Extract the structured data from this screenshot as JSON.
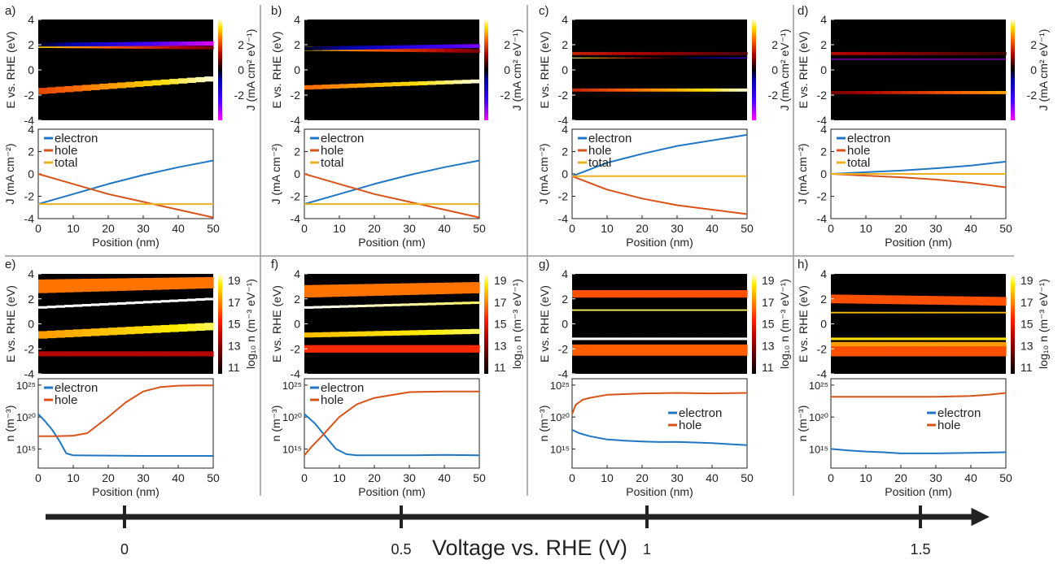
{
  "colors": {
    "electron": "#1f77c4",
    "hole": "#d95319",
    "total": "#edb120",
    "divider": "#999999",
    "axis": "#222222"
  },
  "panels": [
    {
      "label": "a)",
      "row": "J",
      "energy_density_ylabel": "E vs. RHE (eV)",
      "colorbar_label": "J (mA cm² eV⁻¹)",
      "colorbar_ticks": [
        "2",
        "0",
        "-2"
      ]
    },
    {
      "label": "b)",
      "row": "J",
      "energy_density_ylabel": "E vs. RHE (eV)",
      "colorbar_label": "J (mA cm² eV⁻¹)",
      "colorbar_ticks": [
        "2",
        "0",
        "-2"
      ]
    },
    {
      "label": "c)",
      "row": "J",
      "energy_density_ylabel": "E vs. RHE (eV)",
      "colorbar_label": "J (mA cm² eV⁻¹)",
      "colorbar_ticks": [
        "2",
        "0",
        "-2"
      ]
    },
    {
      "label": "d)",
      "row": "J",
      "energy_density_ylabel": "E vs. RHE (eV)",
      "colorbar_label": "J (mA cm² eV⁻¹)",
      "colorbar_ticks": [
        "2",
        "0",
        "-2"
      ]
    },
    {
      "label": "e)",
      "row": "n",
      "energy_density_ylabel": "E vs. RHE (eV)",
      "colorbar_label": "log₁₀ n (m⁻³ eV⁻¹)",
      "colorbar_ticks": [
        "19",
        "17",
        "15",
        "13",
        "11"
      ]
    },
    {
      "label": "f)",
      "row": "n",
      "energy_density_ylabel": "E vs. RHE (eV)",
      "colorbar_label": "log₁₀ n (m⁻³ eV⁻¹)",
      "colorbar_ticks": [
        "19",
        "17",
        "15",
        "13",
        "11"
      ]
    },
    {
      "label": "g)",
      "row": "n",
      "energy_density_ylabel": "E vs. RHE (eV)",
      "colorbar_label": "log₁₀ n (m⁻³ eV⁻¹)",
      "colorbar_ticks": [
        "19",
        "17",
        "15",
        "13",
        "11"
      ]
    },
    {
      "label": "h)",
      "row": "n",
      "energy_density_ylabel": "E vs. RHE (eV)",
      "colorbar_label": "log₁₀ n (m⁻³ eV⁻¹)",
      "colorbar_ticks": [
        "19",
        "17",
        "15",
        "13",
        "11"
      ]
    }
  ],
  "voltage_axis": {
    "label": "Voltage vs. RHE (V)",
    "ticks": [
      "0",
      "0.5",
      "1",
      "1.5"
    ]
  },
  "chart_data": [
    {
      "type": "line",
      "panel": "a)",
      "xlabel": "Position (nm)",
      "ylabel": "J (mA cm⁻²)",
      "xlim": [
        0,
        50
      ],
      "ylim": [
        -4,
        4
      ],
      "xticks": [
        "0",
        "10",
        "20",
        "30",
        "40",
        "50"
      ],
      "yticks": [
        "4",
        "2",
        "0",
        "-2",
        "-4"
      ],
      "legend": "top-left",
      "series": [
        {
          "name": "electron",
          "x": [
            0,
            10,
            20,
            30,
            40,
            50
          ],
          "y": [
            -2.7,
            -1.8,
            -0.9,
            -0.1,
            0.6,
            1.2
          ]
        },
        {
          "name": "hole",
          "x": [
            0,
            10,
            20,
            30,
            40,
            50
          ],
          "y": [
            0,
            -0.9,
            -1.8,
            -2.5,
            -3.2,
            -3.9
          ]
        },
        {
          "name": "total",
          "x": [
            0,
            50
          ],
          "y": [
            -2.7,
            -2.7
          ]
        }
      ]
    },
    {
      "type": "line",
      "panel": "b)",
      "xlabel": "Position (nm)",
      "ylabel": "J (mA cm⁻²)",
      "xlim": [
        0,
        50
      ],
      "ylim": [
        -4,
        4
      ],
      "xticks": [
        "0",
        "10",
        "20",
        "30",
        "40",
        "50"
      ],
      "yticks": [
        "4",
        "2",
        "0",
        "-2",
        "-4"
      ],
      "legend": "top-left",
      "series": [
        {
          "name": "electron",
          "x": [
            0,
            10,
            20,
            30,
            40,
            50
          ],
          "y": [
            -2.7,
            -1.8,
            -0.9,
            -0.1,
            0.6,
            1.2
          ]
        },
        {
          "name": "hole",
          "x": [
            0,
            10,
            20,
            30,
            40,
            50
          ],
          "y": [
            0,
            -0.9,
            -1.8,
            -2.5,
            -3.2,
            -3.9
          ]
        },
        {
          "name": "total",
          "x": [
            0,
            50
          ],
          "y": [
            -2.7,
            -2.7
          ]
        }
      ]
    },
    {
      "type": "line",
      "panel": "c)",
      "xlabel": "Position (nm)",
      "ylabel": "J (mA cm⁻²)",
      "xlim": [
        0,
        50
      ],
      "ylim": [
        -4,
        4
      ],
      "xticks": [
        "0",
        "10",
        "20",
        "30",
        "40",
        "50"
      ],
      "yticks": [
        "4",
        "2",
        "0",
        "-2",
        "-4"
      ],
      "legend": "top-left",
      "series": [
        {
          "name": "electron",
          "x": [
            0,
            10,
            20,
            30,
            40,
            50
          ],
          "y": [
            -0.2,
            1.0,
            1.8,
            2.5,
            3.0,
            3.5
          ]
        },
        {
          "name": "hole",
          "x": [
            0,
            10,
            20,
            30,
            40,
            50
          ],
          "y": [
            -0.2,
            -1.4,
            -2.2,
            -2.8,
            -3.2,
            -3.6
          ]
        },
        {
          "name": "total",
          "x": [
            0,
            50
          ],
          "y": [
            -0.2,
            -0.2
          ]
        }
      ]
    },
    {
      "type": "line",
      "panel": "d)",
      "xlabel": "Position (nm)",
      "ylabel": "J (mA cm⁻²)",
      "xlim": [
        0,
        50
      ],
      "ylim": [
        -4,
        4
      ],
      "xticks": [
        "0",
        "10",
        "20",
        "30",
        "40",
        "50"
      ],
      "yticks": [
        "4",
        "2",
        "0",
        "-2",
        "-4"
      ],
      "legend": "top-left",
      "series": [
        {
          "name": "electron",
          "x": [
            0,
            10,
            20,
            30,
            40,
            50
          ],
          "y": [
            0,
            0.15,
            0.3,
            0.5,
            0.75,
            1.1
          ]
        },
        {
          "name": "hole",
          "x": [
            0,
            10,
            20,
            30,
            40,
            50
          ],
          "y": [
            0,
            -0.15,
            -0.3,
            -0.5,
            -0.8,
            -1.2
          ]
        },
        {
          "name": "total",
          "x": [
            0,
            50
          ],
          "y": [
            0,
            0
          ]
        }
      ]
    },
    {
      "type": "line",
      "panel": "e)",
      "xlabel": "Position (nm)",
      "ylabel": "n (m⁻³)",
      "yscale": "log",
      "xlim": [
        0,
        50
      ],
      "ylim": [
        1000000000000.0,
        1e+26
      ],
      "xticks": [
        "0",
        "10",
        "20",
        "30",
        "40",
        "50"
      ],
      "yticks": [
        "10²⁵",
        "10²⁰",
        "10¹⁵"
      ],
      "legend": "top-left",
      "series": [
        {
          "name": "electron",
          "x": [
            0,
            2,
            4,
            6,
            8,
            10,
            20,
            30,
            40,
            50
          ],
          "y": [
            3e+20,
            2e+19,
            1e+18,
            2e+16,
            200000000000000.0,
            100000000000000.0,
            90000000000000.0,
            80000000000000.0,
            80000000000000.0,
            80000000000000.0
          ]
        },
        {
          "name": "hole",
          "x": [
            0,
            5,
            10,
            14,
            20,
            25,
            30,
            35,
            40,
            45,
            50
          ],
          "y": [
            1e+17,
            1e+17,
            1.2e+17,
            3e+17,
            1e+20,
            2e+22,
            1e+24,
            5e+24,
            8e+24,
            9e+24,
            9e+24
          ]
        }
      ]
    },
    {
      "type": "line",
      "panel": "f)",
      "xlabel": "Position (nm)",
      "ylabel": "n (m⁻³)",
      "yscale": "log",
      "xlim": [
        0,
        50
      ],
      "ylim": [
        1000000000000.0,
        1e+26
      ],
      "xticks": [
        "0",
        "10",
        "20",
        "30",
        "40",
        "50"
      ],
      "yticks": [
        "10²⁵",
        "10²⁰",
        "10¹⁵"
      ],
      "legend": "top-left",
      "series": [
        {
          "name": "electron",
          "x": [
            0,
            3,
            6,
            9,
            12,
            15,
            20,
            30,
            40,
            50
          ],
          "y": [
            3e+20,
            1e+19,
            1e+17,
            1000000000000000.0,
            150000000000000.0,
            100000000000000.0,
            100000000000000.0,
            100000000000000.0,
            120000000000000.0,
            100000000000000.0
          ]
        },
        {
          "name": "hole",
          "x": [
            0,
            2,
            5,
            10,
            15,
            20,
            30,
            40,
            50
          ],
          "y": [
            100000000000000.0,
            2000000000000000.0,
            1e+17,
            1e+20,
            1e+22,
            1e+23,
            8e+23,
            1e+24,
            1e+24
          ]
        }
      ]
    },
    {
      "type": "line",
      "panel": "g)",
      "xlabel": "Position (nm)",
      "ylabel": "n (m⁻³)",
      "yscale": "log",
      "xlim": [
        0,
        50
      ],
      "ylim": [
        1000000000000.0,
        1e+26
      ],
      "xticks": [
        "0",
        "10",
        "20",
        "30",
        "40",
        "50"
      ],
      "yticks": [
        "10²⁵",
        "10²⁰",
        "10¹⁵"
      ],
      "legend": "middle-right",
      "series": [
        {
          "name": "electron",
          "x": [
            0,
            2,
            5,
            10,
            15,
            20,
            25,
            30,
            40,
            50
          ],
          "y": [
            1e+18,
            3e+17,
            1e+17,
            3e+16,
            2e+16,
            1.5e+16,
            1.2e+16,
            1.3e+16,
            8000000000000000.0,
            4000000000000000.0
          ]
        },
        {
          "name": "hole",
          "x": [
            0,
            1,
            3,
            5,
            10,
            20,
            30,
            40,
            50
          ],
          "y": [
            3e+20,
            8e+21,
            5e+22,
            1e+23,
            3e+23,
            5e+23,
            6e+23,
            5e+23,
            6e+23
          ]
        }
      ]
    },
    {
      "type": "line",
      "panel": "h)",
      "xlabel": "Position (nm)",
      "ylabel": "n (m⁻³)",
      "yscale": "log",
      "xlim": [
        0,
        50
      ],
      "ylim": [
        1000000000000.0,
        1e+26
      ],
      "xticks": [
        "0",
        "10",
        "20",
        "30",
        "40",
        "50"
      ],
      "yticks": [
        "10²⁵",
        "10²⁰",
        "10¹⁵"
      ],
      "legend": "middle-right",
      "series": [
        {
          "name": "electron",
          "x": [
            0,
            5,
            10,
            15,
            20,
            30,
            40,
            50
          ],
          "y": [
            1000000000000000.0,
            600000000000000.0,
            400000000000000.0,
            300000000000000.0,
            200000000000000.0,
            200000000000000.0,
            250000000000000.0,
            300000000000000.0
          ]
        },
        {
          "name": "hole",
          "x": [
            0,
            10,
            20,
            30,
            40,
            45,
            50
          ],
          "y": [
            1.5e+23,
            1.5e+23,
            1.5e+23,
            1.5e+23,
            2e+23,
            3e+23,
            6e+23
          ]
        }
      ]
    },
    {
      "type": "heatmap",
      "panel": "a)",
      "quantity": "J",
      "xlim": [
        0,
        50
      ],
      "ylim": [
        -4,
        4
      ],
      "yticks": [
        "4",
        "2",
        "0",
        "-2",
        "-4"
      ],
      "zlim": [
        -3,
        3
      ],
      "bands": [
        {
          "y0": 1.9,
          "y1": 1.75,
          "w0": 0.3,
          "w1": 0.25,
          "a0": 2.5,
          "a1": 0.6
        },
        {
          "y0": 2.0,
          "y1": 2.1,
          "w0": 0.3,
          "w1": 0.35,
          "a0": -0.1,
          "a1": -2.8
        },
        {
          "y0": -1.7,
          "y1": -0.7,
          "w0": 0.5,
          "w1": 0.4,
          "a0": 1.5,
          "a1": 3
        }
      ]
    },
    {
      "type": "heatmap",
      "panel": "b)",
      "quantity": "J",
      "xlim": [
        0,
        50
      ],
      "ylim": [
        -4,
        4
      ],
      "yticks": [
        "4",
        "2",
        "0",
        "-2",
        "-4"
      ],
      "zlim": [
        -3,
        3
      ],
      "bands": [
        {
          "y0": 1.7,
          "y1": 1.5,
          "w0": 0.35,
          "w1": 0.3,
          "a0": 2.5,
          "a1": 0.6
        },
        {
          "y0": 1.7,
          "y1": 1.9,
          "w0": 0.3,
          "w1": 0.3,
          "a0": -0.1,
          "a1": -2.2
        },
        {
          "y0": -1.4,
          "y1": -0.9,
          "w0": 0.35,
          "w1": 0.3,
          "a0": 1.8,
          "a1": 3
        }
      ]
    },
    {
      "type": "heatmap",
      "panel": "c)",
      "quantity": "J",
      "xlim": [
        0,
        50
      ],
      "ylim": [
        -4,
        4
      ],
      "yticks": [
        "4",
        "2",
        "0",
        "-2",
        "-4"
      ],
      "zlim": [
        -3,
        3
      ],
      "bands": [
        {
          "y0": 1.3,
          "y1": 1.3,
          "w0": 0.25,
          "w1": 0.25,
          "a0": 1.2,
          "a1": 0.4
        },
        {
          "y0": 0.95,
          "y1": 0.95,
          "w0": 0.06,
          "w1": 0.06,
          "a0": 3,
          "a1": -2
        },
        {
          "y0": -1.6,
          "y1": -1.6,
          "w0": 0.25,
          "w1": 0.25,
          "a0": 1.2,
          "a1": 3
        }
      ]
    },
    {
      "type": "heatmap",
      "panel": "d)",
      "quantity": "J",
      "xlim": [
        0,
        50
      ],
      "ylim": [
        -4,
        4
      ],
      "yticks": [
        "4",
        "2",
        "0",
        "-2",
        "-4"
      ],
      "zlim": [
        -3,
        3
      ],
      "bands": [
        {
          "y0": 1.3,
          "y1": 1.3,
          "w0": 0.25,
          "w1": 0.25,
          "a0": 1.0,
          "a1": 0.3
        },
        {
          "y0": 0.85,
          "y1": 0.85,
          "w0": 0.05,
          "w1": 0.05,
          "a0": -2.5,
          "a1": -2.5
        },
        {
          "y0": -1.8,
          "y1": -1.8,
          "w0": 0.25,
          "w1": 0.25,
          "a0": 0.6,
          "a1": 2.2
        }
      ]
    },
    {
      "type": "heatmap",
      "panel": "e)",
      "quantity": "log10 n",
      "xlim": [
        0,
        50
      ],
      "ylim": [
        -4,
        4
      ],
      "yticks": [
        "4",
        "2",
        "0",
        "-2",
        "-4"
      ],
      "zlim": [
        11,
        19
      ],
      "bands": [
        {
          "y0": 3.0,
          "y1": 3.3,
          "w0": 1.1,
          "w1": 0.9,
          "a0": 16.5,
          "a1": 16.5
        },
        {
          "y0": 1.3,
          "y1": 2.0,
          "w0": 0.2,
          "w1": 0.2,
          "a0": 19,
          "a1": 19
        },
        {
          "y0": -0.9,
          "y1": -0.2,
          "w0": 0.6,
          "w1": 0.6,
          "a0": 17,
          "a1": 18.5
        },
        {
          "y0": -2.4,
          "y1": -2.4,
          "w0": 0.4,
          "w1": 0.4,
          "a0": 14,
          "a1": 14
        }
      ]
    },
    {
      "type": "heatmap",
      "panel": "f)",
      "quantity": "log10 n",
      "xlim": [
        0,
        50
      ],
      "ylim": [
        -4,
        4
      ],
      "yticks": [
        "4",
        "2",
        "0",
        "-2",
        "-4"
      ],
      "zlim": [
        11,
        19
      ],
      "bands": [
        {
          "y0": 2.6,
          "y1": 2.9,
          "w0": 1.0,
          "w1": 0.9,
          "a0": 16.5,
          "a1": 16.5
        },
        {
          "y0": 1.3,
          "y1": 1.7,
          "w0": 0.2,
          "w1": 0.2,
          "a0": 19,
          "a1": 18.5
        },
        {
          "y0": -0.9,
          "y1": -0.6,
          "w0": 0.4,
          "w1": 0.4,
          "a0": 17.5,
          "a1": 18.5
        },
        {
          "y0": -2.0,
          "y1": -2.0,
          "w0": 0.6,
          "w1": 0.6,
          "a0": 15.5,
          "a1": 15.5
        }
      ]
    },
    {
      "type": "heatmap",
      "panel": "g)",
      "quantity": "log10 n",
      "xlim": [
        0,
        50
      ],
      "ylim": [
        -4,
        4
      ],
      "yticks": [
        "4",
        "2",
        "0",
        "-2",
        "-4"
      ],
      "zlim": [
        11,
        19
      ],
      "bands": [
        {
          "y0": 2.4,
          "y1": 2.4,
          "w0": 0.6,
          "w1": 0.6,
          "a0": 16,
          "a1": 16
        },
        {
          "y0": 1.1,
          "y1": 1.1,
          "w0": 0.12,
          "w1": 0.12,
          "a0": 18.5,
          "a1": 18.5
        },
        {
          "y0": -1.2,
          "y1": -1.2,
          "w0": 0.2,
          "w1": 0.2,
          "a0": 19,
          "a1": 19
        },
        {
          "y0": -2.1,
          "y1": -2.1,
          "w0": 0.9,
          "w1": 0.9,
          "a0": 16.2,
          "a1": 16.2
        }
      ]
    },
    {
      "type": "heatmap",
      "panel": "h)",
      "quantity": "log10 n",
      "xlim": [
        0,
        50
      ],
      "ylim": [
        -4,
        4
      ],
      "yticks": [
        "4",
        "2",
        "0",
        "-2",
        "-4"
      ],
      "zlim": [
        11,
        19
      ],
      "bands": [
        {
          "y0": 2.0,
          "y1": 1.8,
          "w0": 0.7,
          "w1": 0.7,
          "a0": 16,
          "a1": 16
        },
        {
          "y0": 0.9,
          "y1": 0.9,
          "w0": 0.12,
          "w1": 0.12,
          "a0": 17.5,
          "a1": 17.5
        },
        {
          "y0": -1.2,
          "y1": -1.2,
          "w0": 0.2,
          "w1": 0.2,
          "a0": 18,
          "a1": 18
        },
        {
          "y0": -1.7,
          "y1": -1.7,
          "w0": 0.5,
          "w1": 0.5,
          "a0": 17,
          "a1": 17
        },
        {
          "y0": -2.2,
          "y1": -2.2,
          "w0": 0.8,
          "w1": 0.8,
          "a0": 16,
          "a1": 16
        }
      ]
    }
  ]
}
